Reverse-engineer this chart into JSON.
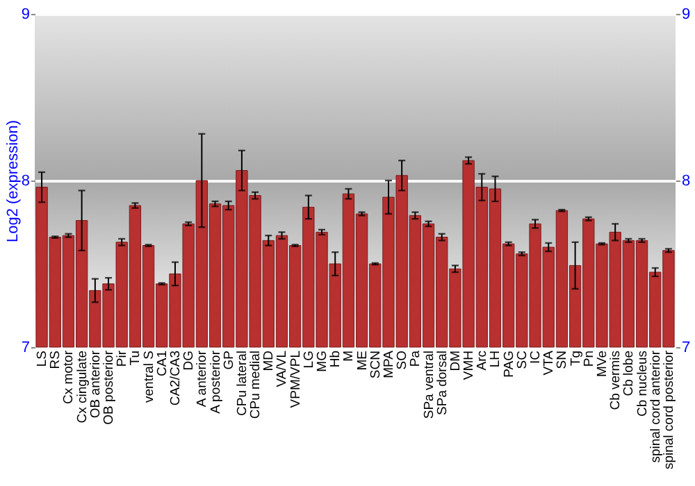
{
  "chart_data": {
    "type": "bar",
    "ylabel": "Log2 (expression)",
    "categories": [
      "LS",
      "RS",
      "Cx motor",
      "Cx cingulate",
      "OB anterior",
      "OB posterior",
      "Pir",
      "Tu",
      "ventral S",
      "CA1",
      "CA2/CA3",
      "DG",
      "A anterior",
      "A posterior",
      "GP",
      "CPu lateral",
      "CPu medial",
      "MD",
      "VA/VL",
      "VPM/VPL",
      "LG",
      "MG",
      "Hb",
      "M",
      "ME",
      "SCN",
      "MPA",
      "SO",
      "Pa",
      "SPa ventral",
      "SPa dorsal",
      "DM",
      "VMH",
      "Arc",
      "LH",
      "PAG",
      "SC",
      "IC",
      "VTA",
      "SN",
      "Tg",
      "Pn",
      "MVe",
      "Cb vermis",
      "Cb lobe",
      "Cb nucleus",
      "spinal cord anterior",
      "spinal cord posterior"
    ],
    "values": [
      7.96,
      7.66,
      7.67,
      7.76,
      7.34,
      7.38,
      7.63,
      7.85,
      7.61,
      7.38,
      7.44,
      7.74,
      8.0,
      7.86,
      7.85,
      8.06,
      7.91,
      7.64,
      7.67,
      7.61,
      7.84,
      7.69,
      7.5,
      7.92,
      7.8,
      7.5,
      7.9,
      8.03,
      7.79,
      7.74,
      7.66,
      7.47,
      8.12,
      7.96,
      7.95,
      7.62,
      7.56,
      7.74,
      7.6,
      7.82,
      7.49,
      7.77,
      7.62,
      7.69,
      7.64,
      7.64,
      7.45,
      7.58
    ],
    "errors": [
      0.09,
      0.005,
      0.01,
      0.18,
      0.07,
      0.036,
      0.02,
      0.015,
      0.005,
      0.005,
      0.07,
      0.01,
      0.28,
      0.015,
      0.025,
      0.12,
      0.02,
      0.03,
      0.02,
      0.005,
      0.07,
      0.015,
      0.07,
      0.03,
      0.01,
      0.005,
      0.1,
      0.09,
      0.02,
      0.015,
      0.02,
      0.02,
      0.02,
      0.08,
      0.075,
      0.01,
      0.01,
      0.025,
      0.025,
      0.005,
      0.14,
      0.01,
      0.005,
      0.05,
      0.01,
      0.01,
      0.025,
      0.01
    ],
    "color": "#b83030",
    "ylim": [
      7,
      9
    ],
    "yticks": [
      7,
      8,
      9
    ],
    "y2lim": [
      7,
      9
    ],
    "y2ticks": [
      7,
      8,
      9
    ],
    "grid": "y"
  }
}
